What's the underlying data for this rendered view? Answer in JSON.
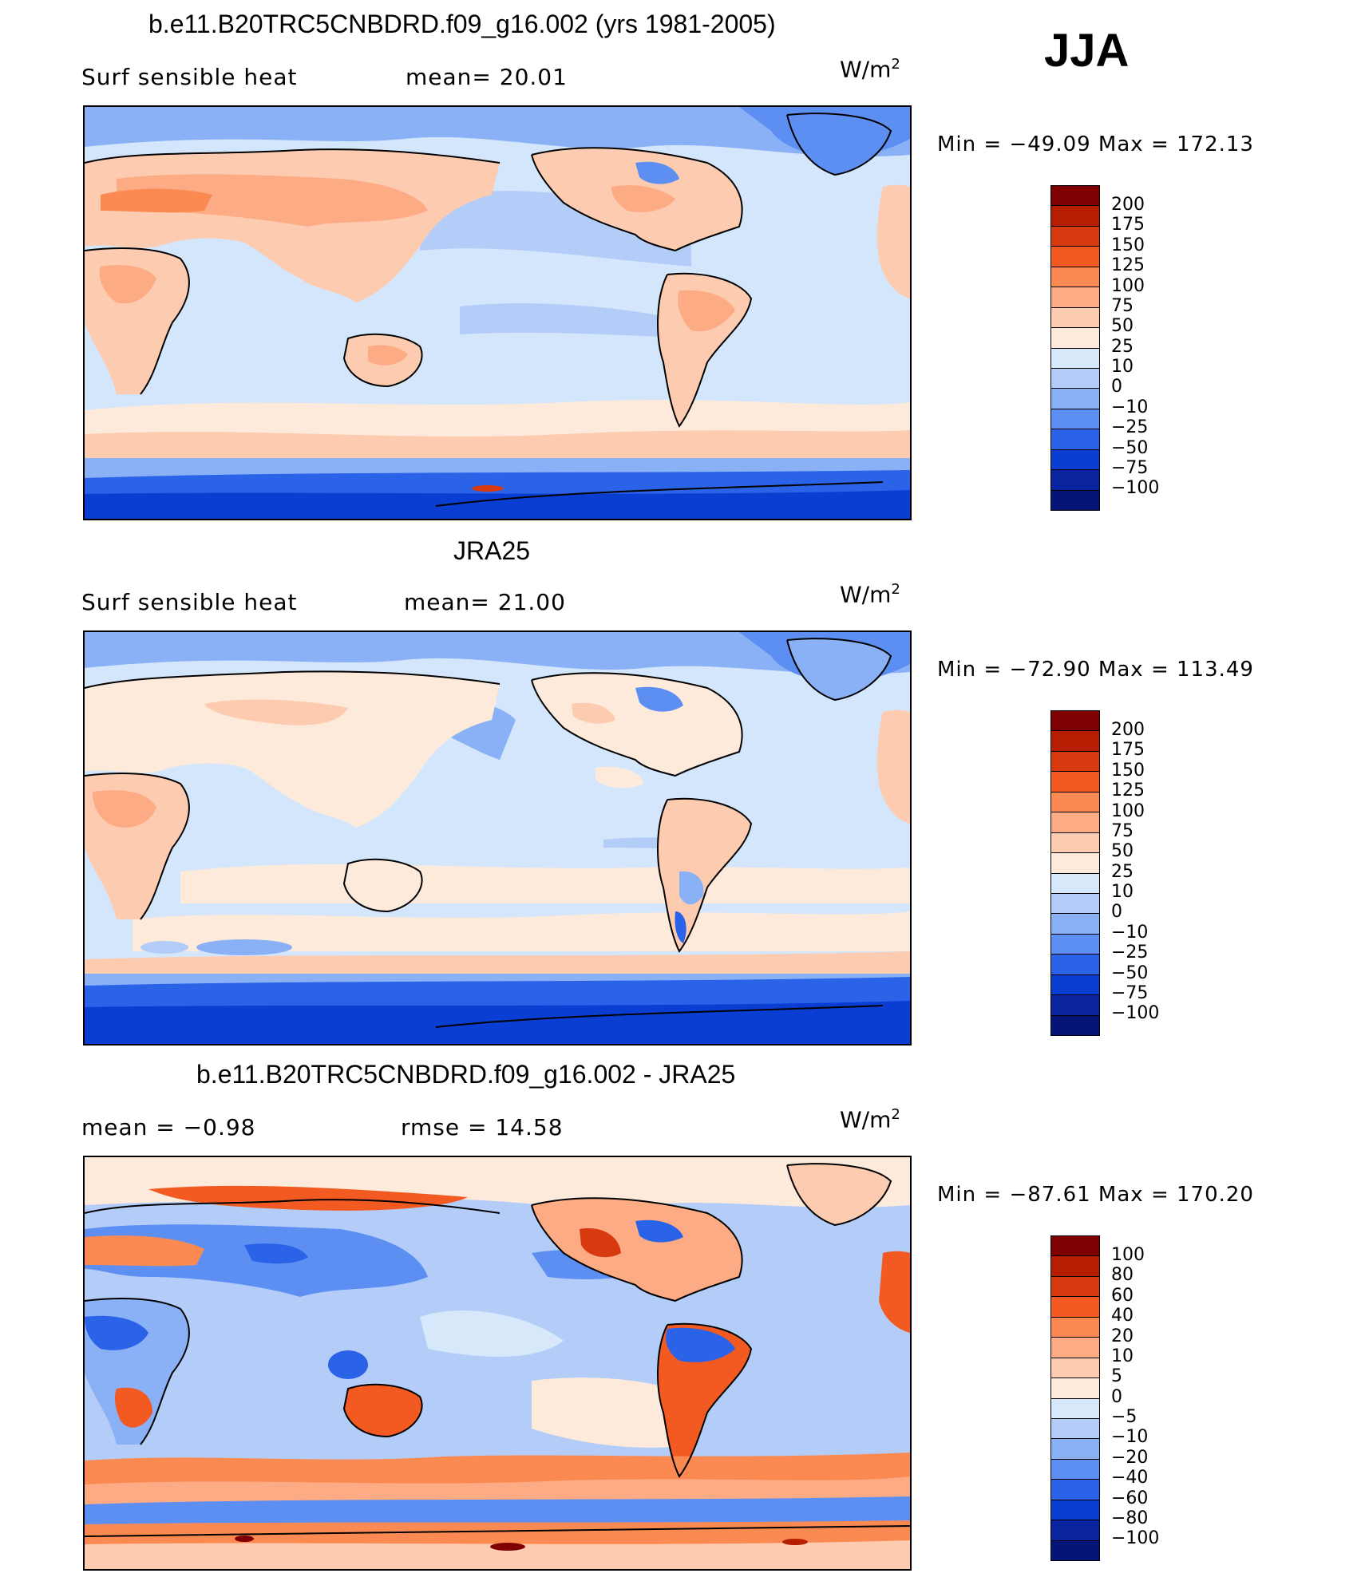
{
  "season": "JJA",
  "units_base": "W/m",
  "units_exp": "2",
  "panels": [
    {
      "title": "b.e11.B20TRC5CNBDRD.f09_g16.002 (yrs 1981-2005)",
      "left_label": "Surf  sensible  heat",
      "center_label": "mean=   20.01",
      "minmax": "Min  =  −49.09  Max  =  172.13",
      "colorbar_labels": [
        "200",
        "175",
        "150",
        "125",
        "100",
        "75",
        "50",
        "25",
        "10",
        "0",
        "−10",
        "−25",
        "−50",
        "−75",
        "−100"
      ]
    },
    {
      "title": "JRA25",
      "left_label": "Surf  sensible  heat",
      "center_label": "mean=   21.00",
      "minmax": "Min  =  −72.90  Max  =  113.49",
      "colorbar_labels": [
        "200",
        "175",
        "150",
        "125",
        "100",
        "75",
        "50",
        "25",
        "10",
        "0",
        "−10",
        "−25",
        "−50",
        "−75",
        "−100"
      ]
    },
    {
      "title": "b.e11.B20TRC5CNBDRD.f09_g16.002 - JRA25",
      "left_label": "mean  =    −0.98",
      "center_label": "rmse  =    14.58",
      "minmax": "Min  =  −87.61  Max  =  170.20",
      "colorbar_labels": [
        "100",
        "80",
        "60",
        "40",
        "20",
        "10",
        "5",
        "0",
        "−5",
        "−10",
        "−20",
        "−40",
        "−60",
        "−80",
        "−100"
      ]
    }
  ],
  "colorbar_colors": [
    "#7f0000",
    "#b51e00",
    "#d83a10",
    "#f25a22",
    "#fb8a52",
    "#fcab84",
    "#fdcbb0",
    "#fdeadb",
    "#d6e8fa",
    "#b3cdf8",
    "#8ab0f6",
    "#5d8ff2",
    "#2a63e8",
    "#0a3dd2",
    "#0a239e",
    "#061478"
  ]
}
